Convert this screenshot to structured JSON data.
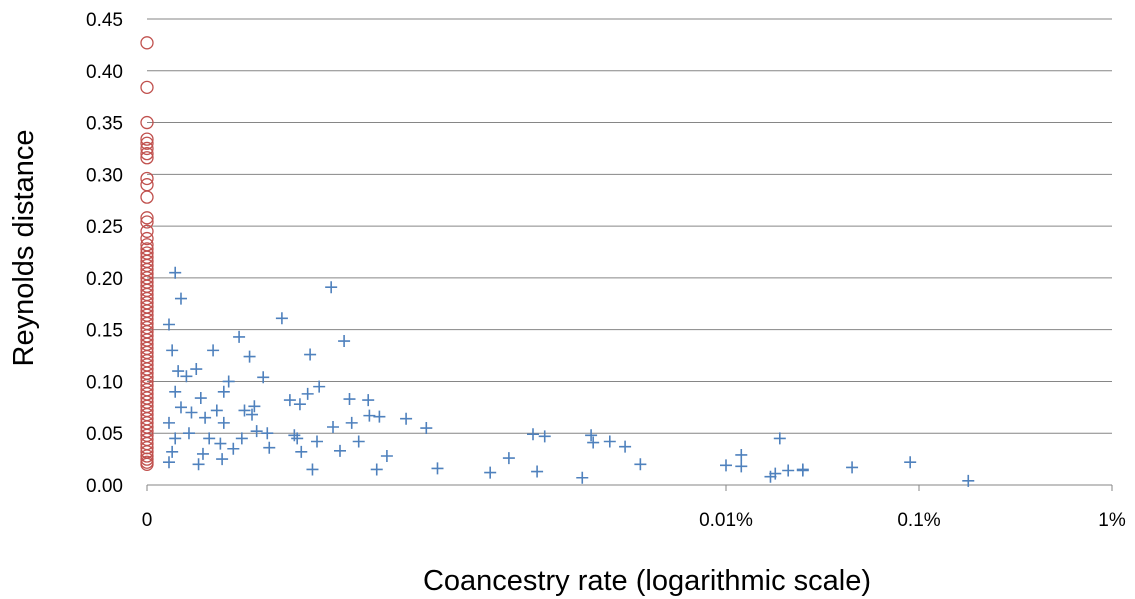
{
  "chart_data": {
    "type": "scatter",
    "title": "",
    "xlabel": "Coancestry rate (logarithmic scale)",
    "ylabel": "Reynolds distance",
    "x_scale": "log",
    "xlim": [
      1e-07,
      0.01
    ],
    "x_ticks": [
      {
        "value": 1e-07,
        "label": "0"
      },
      {
        "value": 0.0001,
        "label": "0.01%"
      },
      {
        "value": 0.001,
        "label": "0.1%"
      },
      {
        "value": 0.01,
        "label": "1%"
      }
    ],
    "ylim": [
      0,
      0.45
    ],
    "y_ticks": [
      {
        "value": 0.0,
        "label": "0.00"
      },
      {
        "value": 0.05,
        "label": "0.05"
      },
      {
        "value": 0.1,
        "label": "0.10"
      },
      {
        "value": 0.15,
        "label": "0.15"
      },
      {
        "value": 0.2,
        "label": "0.20"
      },
      {
        "value": 0.25,
        "label": "0.25"
      },
      {
        "value": 0.3,
        "label": "0.30"
      },
      {
        "value": 0.35,
        "label": "0.35"
      },
      {
        "value": 0.4,
        "label": "0.40"
      },
      {
        "value": 0.45,
        "label": "0.45"
      }
    ],
    "grid": "horizontal",
    "legend": "none",
    "series": [
      {
        "marker": "circle",
        "color": "#C0504D",
        "points": [
          [
            0,
            0.427
          ],
          [
            0,
            0.384
          ],
          [
            0,
            0.35
          ],
          [
            0,
            0.334
          ],
          [
            0,
            0.33
          ],
          [
            0,
            0.325
          ],
          [
            0,
            0.32
          ],
          [
            0,
            0.316
          ],
          [
            0,
            0.296
          ],
          [
            0,
            0.29
          ],
          [
            0,
            0.278
          ],
          [
            0,
            0.258
          ],
          [
            0,
            0.254
          ],
          [
            0,
            0.245
          ],
          [
            0,
            0.238
          ],
          [
            0,
            0.232
          ],
          [
            0,
            0.228
          ],
          [
            0,
            0.224
          ],
          [
            0,
            0.22
          ],
          [
            0,
            0.216
          ],
          [
            0,
            0.212
          ],
          [
            0,
            0.208
          ],
          [
            0,
            0.204
          ],
          [
            0,
            0.2
          ],
          [
            0,
            0.196
          ],
          [
            0,
            0.192
          ],
          [
            0,
            0.188
          ],
          [
            0,
            0.184
          ],
          [
            0,
            0.18
          ],
          [
            0,
            0.176
          ],
          [
            0,
            0.172
          ],
          [
            0,
            0.168
          ],
          [
            0,
            0.164
          ],
          [
            0,
            0.16
          ],
          [
            0,
            0.156
          ],
          [
            0,
            0.152
          ],
          [
            0,
            0.148
          ],
          [
            0,
            0.144
          ],
          [
            0,
            0.14
          ],
          [
            0,
            0.136
          ],
          [
            0,
            0.132
          ],
          [
            0,
            0.128
          ],
          [
            0,
            0.124
          ],
          [
            0,
            0.12
          ],
          [
            0,
            0.116
          ],
          [
            0,
            0.112
          ],
          [
            0,
            0.108
          ],
          [
            0,
            0.104
          ],
          [
            0,
            0.1
          ],
          [
            0,
            0.096
          ],
          [
            0,
            0.092
          ],
          [
            0,
            0.088
          ],
          [
            0,
            0.084
          ],
          [
            0,
            0.08
          ],
          [
            0,
            0.076
          ],
          [
            0,
            0.072
          ],
          [
            0,
            0.068
          ],
          [
            0,
            0.064
          ],
          [
            0,
            0.06
          ],
          [
            0,
            0.056
          ],
          [
            0,
            0.052
          ],
          [
            0,
            0.048
          ],
          [
            0,
            0.044
          ],
          [
            0,
            0.04
          ],
          [
            0,
            0.036
          ],
          [
            0,
            0.032
          ],
          [
            0,
            0.028
          ],
          [
            0,
            0.025
          ],
          [
            0,
            0.022
          ],
          [
            0,
            0.02
          ]
        ]
      },
      {
        "marker": "plus",
        "color": "#4F81BD",
        "points": [
          [
            1.4e-07,
            0.205
          ],
          [
            1.5e-07,
            0.18
          ],
          [
            1.3e-07,
            0.155
          ],
          [
            1.35e-07,
            0.13
          ],
          [
            1.45e-07,
            0.11
          ],
          [
            1.4e-07,
            0.09
          ],
          [
            1.5e-07,
            0.075
          ],
          [
            1.3e-07,
            0.06
          ],
          [
            1.4e-07,
            0.045
          ],
          [
            1.35e-07,
            0.032
          ],
          [
            1.3e-07,
            0.022
          ],
          [
            1.6e-07,
            0.105
          ],
          [
            1.7e-07,
            0.07
          ],
          [
            1.65e-07,
            0.05
          ],
          [
            1.8e-07,
            0.112
          ],
          [
            1.9e-07,
            0.084
          ],
          [
            2e-07,
            0.065
          ],
          [
            2.1e-07,
            0.045
          ],
          [
            1.95e-07,
            0.03
          ],
          [
            1.85e-07,
            0.02
          ],
          [
            2.2e-07,
            0.13
          ],
          [
            2.3e-07,
            0.072
          ],
          [
            2.4e-07,
            0.04
          ],
          [
            2.5e-07,
            0.09
          ],
          [
            2.65e-07,
            0.1
          ],
          [
            2.5e-07,
            0.06
          ],
          [
            2.45e-07,
            0.025
          ],
          [
            2.8e-07,
            0.035
          ],
          [
            3e-07,
            0.143
          ],
          [
            3.2e-07,
            0.072
          ],
          [
            3.1e-07,
            0.045
          ],
          [
            3.4e-07,
            0.124
          ],
          [
            3.6e-07,
            0.076
          ],
          [
            3.5e-07,
            0.068
          ],
          [
            3.7e-07,
            0.052
          ],
          [
            4e-07,
            0.104
          ],
          [
            4.2e-07,
            0.05
          ],
          [
            4.3e-07,
            0.036
          ],
          [
            5e-07,
            0.161
          ],
          [
            5.5e-07,
            0.082
          ],
          [
            5.8e-07,
            0.048
          ],
          [
            6e-07,
            0.045
          ],
          [
            6.2e-07,
            0.078
          ],
          [
            6.3e-07,
            0.032
          ],
          [
            6.8e-07,
            0.088
          ],
          [
            7e-07,
            0.126
          ],
          [
            7.2e-07,
            0.015
          ],
          [
            7.8e-07,
            0.095
          ],
          [
            7.6e-07,
            0.042
          ],
          [
            9e-07,
            0.191
          ],
          [
            9.2e-07,
            0.056
          ],
          [
            1e-06,
            0.033
          ],
          [
            1.05e-06,
            0.139
          ],
          [
            1.12e-06,
            0.083
          ],
          [
            1.15e-06,
            0.06
          ],
          [
            1.25e-06,
            0.042
          ],
          [
            1.4e-06,
            0.082
          ],
          [
            1.42e-06,
            0.067
          ],
          [
            1.6e-06,
            0.066
          ],
          [
            1.55e-06,
            0.015
          ],
          [
            1.75e-06,
            0.028
          ],
          [
            2.2e-06,
            0.064
          ],
          [
            2.8e-06,
            0.055
          ],
          [
            3.2e-06,
            0.016
          ],
          [
            6e-06,
            0.012
          ],
          [
            7.5e-06,
            0.026
          ],
          [
            1e-05,
            0.049
          ],
          [
            1.05e-05,
            0.013
          ],
          [
            1.15e-05,
            0.047
          ],
          [
            1.8e-05,
            0.007
          ],
          [
            2e-05,
            0.048
          ],
          [
            2.05e-05,
            0.041
          ],
          [
            2.5e-05,
            0.042
          ],
          [
            3e-05,
            0.037
          ],
          [
            3.6e-05,
            0.02
          ],
          [
            0.0001,
            0.019
          ],
          [
            0.00012,
            0.018
          ],
          [
            0.00012,
            0.029
          ],
          [
            0.00017,
            0.008
          ],
          [
            0.00018,
            0.011
          ],
          [
            0.00019,
            0.045
          ],
          [
            0.00021,
            0.014
          ],
          [
            0.00025,
            0.015
          ],
          [
            0.00025,
            0.014
          ],
          [
            0.00045,
            0.017
          ],
          [
            0.0009,
            0.022
          ],
          [
            0.0018,
            0.004
          ]
        ]
      }
    ]
  }
}
